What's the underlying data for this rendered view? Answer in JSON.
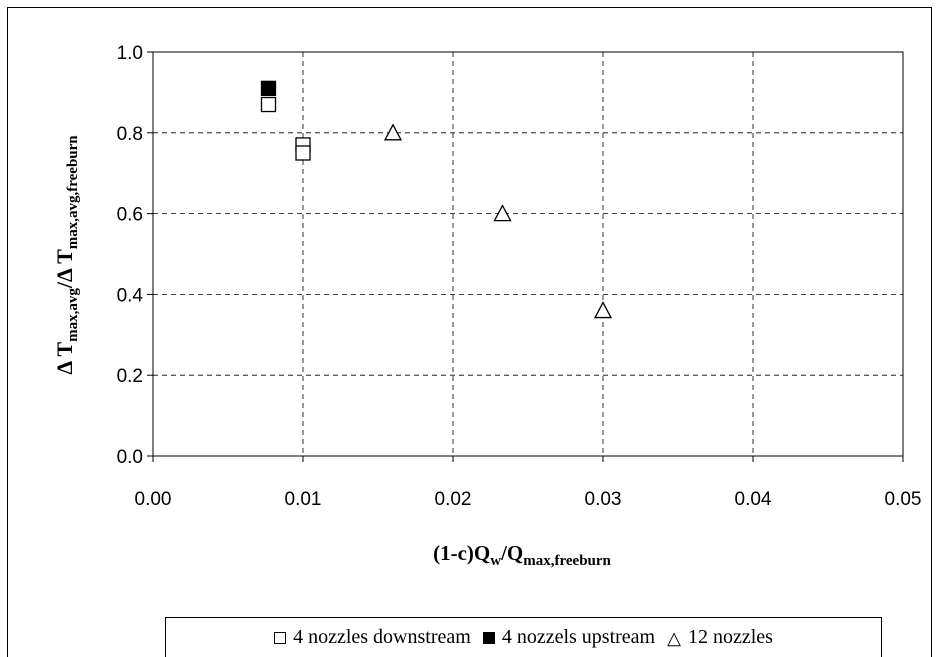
{
  "chart_data": {
    "type": "scatter",
    "title": "",
    "xlabel": "(1-c)Q_w/Q_max,freeburn",
    "ylabel": "ΔT_max,avg/ΔT_max,avg,freeburn",
    "xlim": [
      0,
      0.05
    ],
    "ylim": [
      0,
      1.0
    ],
    "x_ticks": [
      "0.00",
      "0.01",
      "0.02",
      "0.03",
      "0.04",
      "0.05"
    ],
    "y_ticks": [
      "0.0",
      "0.2",
      "0.4",
      "0.6",
      "0.8",
      "1.0"
    ],
    "grid": true,
    "legend_position": "bottom",
    "series": [
      {
        "name": "4 nozzles downstream",
        "marker": "open-square",
        "x": [
          0.0077,
          0.01,
          0.01
        ],
        "y": [
          0.87,
          0.77,
          0.75
        ]
      },
      {
        "name": "4 nozzels upstream",
        "marker": "filled-square",
        "x": [
          0.0077
        ],
        "y": [
          0.91
        ]
      },
      {
        "name": "12 nozzles",
        "marker": "open-triangle",
        "x": [
          0.016,
          0.0233,
          0.03
        ],
        "y": [
          0.8,
          0.6,
          0.36
        ]
      }
    ]
  },
  "labels": {
    "xlabel_main": "(1-c)Q",
    "xlabel_sub1": "w",
    "xlabel_mid": "/Q",
    "xlabel_sub2": "max,freeburn",
    "ylabel_delta1": "Δ",
    "ylabel_T1": "T",
    "ylabel_sub1": "max,avg",
    "ylabel_slash": "/",
    "ylabel_delta2": "Δ",
    "ylabel_T2": "T",
    "ylabel_sub2": "max,avg,freeburn"
  }
}
